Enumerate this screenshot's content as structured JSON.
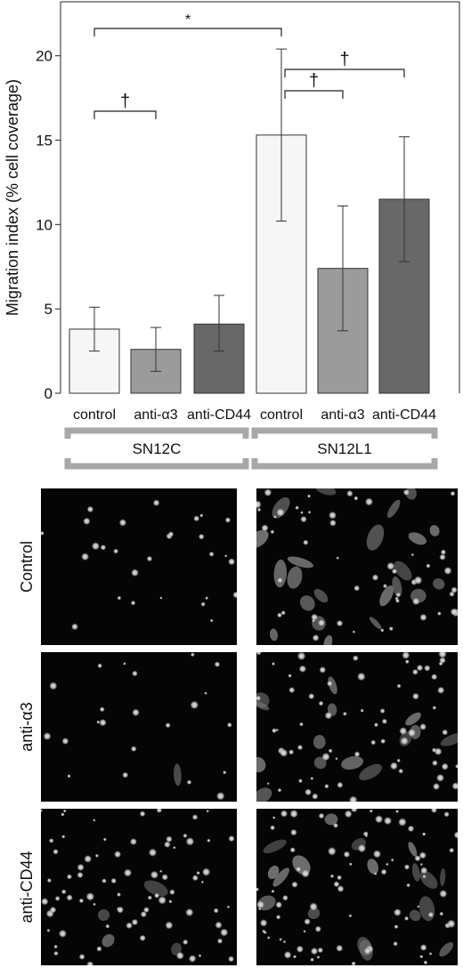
{
  "chart_data": {
    "type": "bar",
    "ylabel": "Migration index (% cell coverage)",
    "ylim": [
      0,
      23.2
    ],
    "yticks": [
      0,
      5,
      10,
      15,
      20
    ],
    "categories": [
      "control",
      "anti-α3",
      "anti-CD44",
      "control",
      "anti-α3",
      "anti-CD44"
    ],
    "groups": [
      {
        "label": "SN12C",
        "category_indices": [
          0,
          1,
          2
        ]
      },
      {
        "label": "SN12L1",
        "category_indices": [
          3,
          4,
          5
        ]
      }
    ],
    "values": [
      3.8,
      2.6,
      4.1,
      15.3,
      7.4,
      11.5
    ],
    "error_low": [
      2.5,
      1.3,
      2.5,
      10.2,
      3.7,
      7.8
    ],
    "error_high": [
      5.1,
      3.9,
      5.8,
      20.4,
      11.1,
      15.2
    ],
    "bar_colors": [
      "#f6f6f6",
      "#9b9b9b",
      "#686868",
      "#f6f6f6",
      "#9b9b9b",
      "#686868"
    ],
    "significance": [
      {
        "from": 0,
        "to": 3,
        "symbol": "*"
      },
      {
        "from": 0,
        "to": 1,
        "symbol": "†"
      },
      {
        "from": 3,
        "to": 4,
        "symbol": "†"
      },
      {
        "from": 3,
        "to": 5,
        "symbol": "†"
      }
    ],
    "grid": false
  },
  "micrographs": {
    "row_labels": [
      "Control",
      "anti-α3",
      "anti-CD44"
    ],
    "columns": [
      "SN12C",
      "SN12L1"
    ],
    "background": "#050505",
    "cell_color": "#e8e8e8"
  }
}
